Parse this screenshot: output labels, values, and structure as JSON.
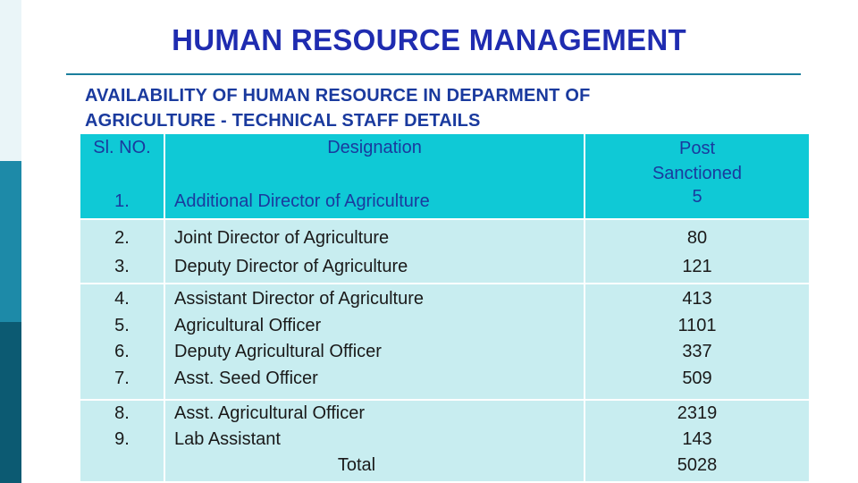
{
  "title": "HUMAN RESOURCE MANAGEMENT",
  "subtitle_line1": "AVAILABILITY OF HUMAN RESOURCE IN  DEPARMENT OF",
  "subtitle_line2": "AGRICULTURE - TECHNICAL STAFF DETAILS",
  "table": {
    "headers": {
      "sl": "Sl. NO.",
      "designation": "Designation",
      "post_line1": "Post",
      "post_line2": "Sanctioned"
    },
    "rows": [
      {
        "sl": "1.",
        "designation": "Additional Director of Agriculture",
        "posts": "5"
      },
      {
        "sl": "2.",
        "designation": "Joint Director of Agriculture",
        "posts": "80"
      },
      {
        "sl": "3.",
        "designation": "Deputy Director of Agriculture",
        "posts": "121"
      },
      {
        "sl": "4.",
        "designation": "Assistant Director of Agriculture",
        "posts": "413"
      },
      {
        "sl": "5.",
        "designation": "Agricultural Officer",
        "posts": "1101"
      },
      {
        "sl": "6.",
        "designation": "Deputy Agricultural Officer",
        "posts": "337"
      },
      {
        "sl": "7.",
        "designation": "Asst. Seed Officer",
        "posts": "509"
      },
      {
        "sl": "8.",
        "designation": "Asst. Agricultural Officer",
        "posts": "2319"
      },
      {
        "sl": "9.",
        "designation": "Lab Assistant",
        "posts": "143"
      }
    ],
    "total_label": "Total",
    "total_value": "5028"
  },
  "colors": {
    "title": "#1f2cb0",
    "header_fill": "#0fc9d6",
    "row_fill": "#c8edf0",
    "rule": "#1b7e9c"
  }
}
